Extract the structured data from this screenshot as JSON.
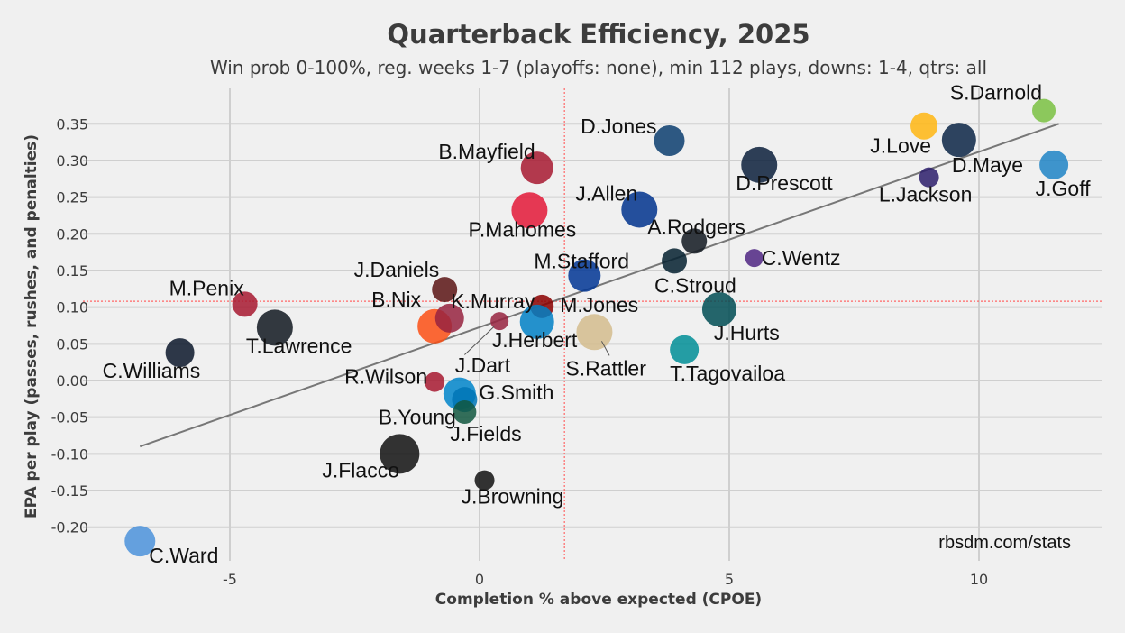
{
  "chart_data": {
    "type": "scatter",
    "title": "Quarterback Efficiency, 2025",
    "subtitle": "Win prob 0-100%, reg. weeks 1-7 (playoffs: none), min 112 plays, downs: 1-4, qtrs: all",
    "xlabel": "Completion % above expected (CPOE)",
    "ylabel": "EPA per play (passes, rushes, and penalties)",
    "credit": "rbsdm.com/stats",
    "xlim": [
      -7.4,
      12.2
    ],
    "ylim": [
      -0.24,
      0.4
    ],
    "x_ticks": [
      -5,
      0,
      5,
      10
    ],
    "x_tick_labels": [
      "-5",
      "0",
      "5",
      "10"
    ],
    "y_ticks": [
      -0.2,
      -0.15,
      -0.1,
      -0.05,
      0.0,
      0.05,
      0.1,
      0.15,
      0.2,
      0.25,
      0.3,
      0.35
    ],
    "y_tick_labels": [
      "-0.20",
      "-0.15",
      "-0.10",
      "-0.05",
      "0.00",
      "0.05",
      "0.10",
      "0.15",
      "0.20",
      "0.25",
      "0.30",
      "0.35"
    ],
    "grid": true,
    "reference_lines": {
      "x_mean": 1.7,
      "y_mean": 0.108,
      "color": "#ff6666"
    },
    "trend_line": {
      "x": [
        -6.8,
        11.6
      ],
      "y": [
        -0.09,
        0.35
      ],
      "color": "#777777"
    },
    "points": [
      {
        "name": "S.Darnold",
        "x": 11.3,
        "y": 0.368,
        "color": "#7ac142",
        "size": 13
      },
      {
        "name": "J.Love",
        "x": 8.9,
        "y": 0.347,
        "color": "#ffb612",
        "size": 15
      },
      {
        "name": "D.Maye",
        "x": 9.6,
        "y": 0.328,
        "color": "#0b2545",
        "size": 19
      },
      {
        "name": "D.Jones",
        "x": 3.8,
        "y": 0.327,
        "color": "#0b3d6e",
        "size": 17
      },
      {
        "name": "J.Goff",
        "x": 11.5,
        "y": 0.294,
        "color": "#1f84c6",
        "size": 16
      },
      {
        "name": "D.Prescott",
        "x": 5.6,
        "y": 0.294,
        "color": "#0b1e3b",
        "size": 20
      },
      {
        "name": "B.Mayfield",
        "x": 1.15,
        "y": 0.29,
        "color": "#a71930",
        "size": 18
      },
      {
        "name": "L.Jackson",
        "x": 9.0,
        "y": 0.277,
        "color": "#2c1d6b",
        "size": 11
      },
      {
        "name": "J.Allen",
        "x": 3.2,
        "y": 0.233,
        "color": "#00338d",
        "size": 20
      },
      {
        "name": "P.Mahomes",
        "x": 1.0,
        "y": 0.232,
        "color": "#e31837",
        "size": 20
      },
      {
        "name": "A.Rodgers",
        "x": 4.3,
        "y": 0.19,
        "color": "#101820",
        "size": 14
      },
      {
        "name": "C.Wentz",
        "x": 5.5,
        "y": 0.167,
        "color": "#4f2683",
        "size": 10
      },
      {
        "name": "C.Stroud",
        "x": 3.9,
        "y": 0.163,
        "color": "#03202f",
        "size": 14
      },
      {
        "name": "M.Stafford",
        "x": 2.1,
        "y": 0.143,
        "color": "#003594",
        "size": 18
      },
      {
        "name": "J.Daniels",
        "x": -0.7,
        "y": 0.124,
        "color": "#5a1414",
        "size": 14
      },
      {
        "name": "M.Penix",
        "x": -4.7,
        "y": 0.104,
        "color": "#a71930",
        "size": 14
      },
      {
        "name": "M.Jones",
        "x": 1.25,
        "y": 0.101,
        "color": "#8b0000",
        "size": 13
      },
      {
        "name": "J.Hurts",
        "x": 4.8,
        "y": 0.097,
        "color": "#004c54",
        "size": 19
      },
      {
        "name": "K.Murray",
        "x": 0.4,
        "y": 0.081,
        "color": "#97233f",
        "size": 10
      },
      {
        "name": "J.Herbert",
        "x": 1.15,
        "y": 0.08,
        "color": "#0080c6",
        "size": 19
      },
      {
        "name": "B.Nix",
        "x": -0.9,
        "y": 0.074,
        "color": "#fb4f14",
        "size": 19
      },
      {
        "name": "T.Lawrence",
        "x": -4.1,
        "y": 0.072,
        "color": "#101820",
        "size": 20
      },
      {
        "name": "S.Rattler",
        "x": 2.3,
        "y": 0.066,
        "color": "#d3bc8d",
        "size": 20
      },
      {
        "name": "T.Tagovailoa",
        "x": 4.1,
        "y": 0.042,
        "color": "#008e97",
        "size": 16
      },
      {
        "name": "C.Williams",
        "x": -6.0,
        "y": 0.038,
        "color": "#0b162a",
        "size": 16
      },
      {
        "name": "R.Wilson",
        "x": -0.9,
        "y": -0.002,
        "color": "#a71930",
        "size": 11
      },
      {
        "name": "J.Dart",
        "x": -0.6,
        "y": 0.085,
        "color": "#97233f",
        "size": 16
      },
      {
        "name": "B.Young",
        "x": -0.4,
        "y": -0.018,
        "color": "#0085ca",
        "size": 18
      },
      {
        "name": "G.Smith",
        "x": -0.3,
        "y": -0.026,
        "color": "#0076b6",
        "size": 14
      },
      {
        "name": "J.Fields",
        "x": -0.3,
        "y": -0.043,
        "color": "#125740",
        "size": 13
      },
      {
        "name": "J.Flacco",
        "x": -1.6,
        "y": -0.1,
        "color": "#111111",
        "size": 22
      },
      {
        "name": "J.Browning",
        "x": 0.1,
        "y": -0.136,
        "color": "#111111",
        "size": 11
      },
      {
        "name": "C.Ward",
        "x": -6.8,
        "y": -0.219,
        "color": "#4b92db",
        "size": 17
      }
    ]
  }
}
